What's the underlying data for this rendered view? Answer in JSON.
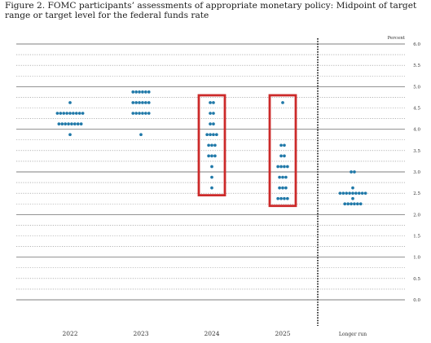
{
  "chart_data": {
    "type": "scatter",
    "title": "Figure 2. FOMC participants’ assessments of appropriate monetary policy: Midpoint of target range or target level for the federal funds rate",
    "ylabel": "Percent",
    "ylim": [
      0,
      6.0
    ],
    "y_ticks": [
      "0.0",
      "0.25",
      "0.5",
      "0.75",
      "1.0",
      "1.25",
      "1.5",
      "1.75",
      "2.0",
      "2.25",
      "2.5",
      "2.75",
      "3.0",
      "3.25",
      "3.5",
      "3.75",
      "4.0",
      "4.25",
      "4.5",
      "4.75",
      "5.0",
      "5.25",
      "5.5",
      "5.75",
      "6.0"
    ],
    "y_tick_labels": {
      "0": "0.0",
      "0.5": "0.5",
      "1": "1.0",
      "1.5": "1.5",
      "2": "2.0",
      "2.5": "2.5",
      "3": "3.0",
      "3.5": "3.5",
      "4": "4.0",
      "4.5": "4.5",
      "5": "5.0",
      "5.5": "5.5",
      "6": "6.0"
    },
    "categories": [
      "2022",
      "2023",
      "2024",
      "2025",
      "Longer run"
    ],
    "dot_color": "#1f78a8",
    "highlight_color": "#cc2a2a",
    "highlighted_categories": [
      "2024",
      "2025"
    ],
    "dots": [
      {
        "category": "2022",
        "counts": [
          {
            "rate": 4.625,
            "n": 1
          },
          {
            "rate": 4.375,
            "n": 9
          },
          {
            "rate": 4.125,
            "n": 8
          },
          {
            "rate": 3.875,
            "n": 1
          }
        ]
      },
      {
        "category": "2023",
        "counts": [
          {
            "rate": 4.875,
            "n": 6
          },
          {
            "rate": 4.625,
            "n": 6
          },
          {
            "rate": 4.375,
            "n": 6
          },
          {
            "rate": 3.875,
            "n": 1
          }
        ]
      },
      {
        "category": "2024",
        "counts": [
          {
            "rate": 4.625,
            "n": 2
          },
          {
            "rate": 4.375,
            "n": 2
          },
          {
            "rate": 4.125,
            "n": 2
          },
          {
            "rate": 3.875,
            "n": 4
          },
          {
            "rate": 3.625,
            "n": 3
          },
          {
            "rate": 3.375,
            "n": 3
          },
          {
            "rate": 3.125,
            "n": 1
          },
          {
            "rate": 2.875,
            "n": 1
          },
          {
            "rate": 2.625,
            "n": 1
          }
        ]
      },
      {
        "category": "2025",
        "counts": [
          {
            "rate": 4.625,
            "n": 1
          },
          {
            "rate": 3.625,
            "n": 2
          },
          {
            "rate": 3.375,
            "n": 2
          },
          {
            "rate": 3.125,
            "n": 4
          },
          {
            "rate": 2.875,
            "n": 3
          },
          {
            "rate": 2.625,
            "n": 3
          },
          {
            "rate": 2.375,
            "n": 4
          }
        ]
      },
      {
        "category": "Longer run",
        "counts": [
          {
            "rate": 3.0,
            "n": 2
          },
          {
            "rate": 2.625,
            "n": 1
          },
          {
            "rate": 2.5,
            "n": 9
          },
          {
            "rate": 2.375,
            "n": 1
          },
          {
            "rate": 2.25,
            "n": 6
          }
        ]
      }
    ],
    "grid": true,
    "separator_before": "Longer run"
  }
}
